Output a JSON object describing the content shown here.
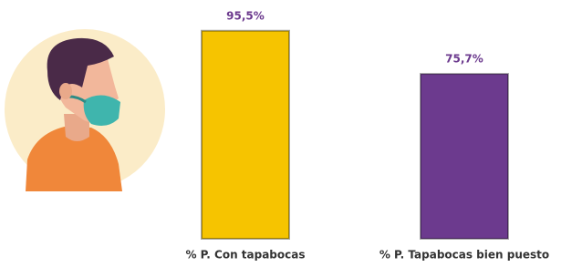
{
  "chart_data": {
    "type": "bar",
    "categories": [
      "% P.  Con tapabocas",
      "% P. Tapabocas bien puesto"
    ],
    "values": [
      95.5,
      75.7
    ],
    "value_labels": [
      "95,5%",
      "75,7%"
    ],
    "colors": [
      "#f6c400",
      "#6c3a8e"
    ]
  }
}
